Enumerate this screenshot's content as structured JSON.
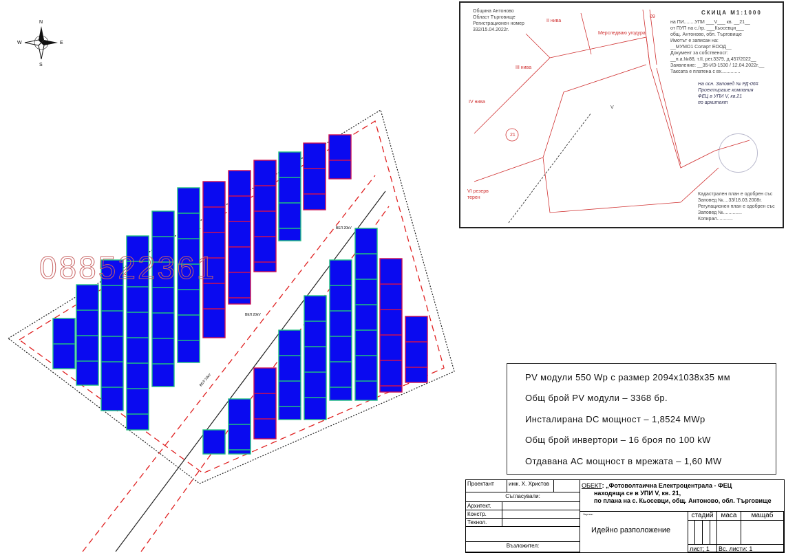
{
  "compass": {
    "n": "N",
    "s": "S",
    "e": "E",
    "w": "W"
  },
  "watermark": "088522361",
  "line_labels": [
    "ВЕЛ 20kV",
    "ВЕЛ 20kV",
    "ВЕЛ 20kV"
  ],
  "sketch": {
    "header": "СКИЦА М1:1000",
    "left_info": [
      "Община Антоново",
      "Област Търговище",
      "Регистрационен номер",
      "332/15.04.2022г."
    ],
    "right_info": [
      "на ПИ........УПИ ___V___ кв. __21__",
      "от ПУП на с./гр. ___Кьосевци___",
      "общ. Антоново, обл. Търговище",
      "Имотът е записан на:",
      "__МУМО1 Соларт ЕООД__",
      "Документ за собственост:",
      "__н.а.№88, т.II, рег.3379, д.457/2022__",
      "Заявление: __35-ИЗ-1530 / 12.04.2022г.__",
      "Таксата е платена с вх.............."
    ],
    "right_bottom": [
      "Кадастрален план е одобрен със",
      "Заповед №....33/18.03.2008г.",
      "Регулационен план е одобрен със",
      "Заповед №..............",
      "Копирал............"
    ],
    "labels": [
      "II нива",
      "Мерследваю угодура",
      "III нива",
      "IV нива",
      "VI резерв терен",
      "V",
      "21",
      "09"
    ],
    "note": [
      "На осн. Заповед № РД-06#",
      "Проектираше компания",
      "ФЕЦ в УПИ V, кв.21",
      "по архитект"
    ]
  },
  "specs": [
    "PV модули 550 Wp с размер 2094x1038x35 мм",
    "Общ брой PV модули – 3368 бр.",
    "Инсталирана DC мощност – 1,8524 MWp",
    "Общ брой инвертори – 16 броя по 100 kW",
    "Отдавана АС мощност в мрежата – 1,60 MW"
  ],
  "title_block": {
    "designer_label": "Проектант",
    "designer": "инж. Х. Христов",
    "agreed": "Съгласували:",
    "architect": "Архитект.",
    "structural": "Констр.",
    "technology": "Технол.",
    "client": "Възложител:",
    "object_label": "ОБЕКТ",
    "object": [
      ": „Фотоволтаична Електроцентрала - ФЕЦ",
      "находяща се в УПИ V, кв. 21,",
      "по плана на с. Кьосевци, общ. Антоново, обл. Търговище"
    ],
    "drawing_label": "Чертеж:",
    "drawing": "Идейно разположение",
    "stage": "стадий",
    "mass": "маса",
    "scale": "мащаб",
    "sheet": "лист;  1",
    "sheets": "Вс. листи: 1"
  },
  "colors": {
    "panel": "#0a0af0",
    "panel_edge_green": "#20c080",
    "panel_edge_red": "#d01050",
    "boundary_dash": "#e02020"
  }
}
